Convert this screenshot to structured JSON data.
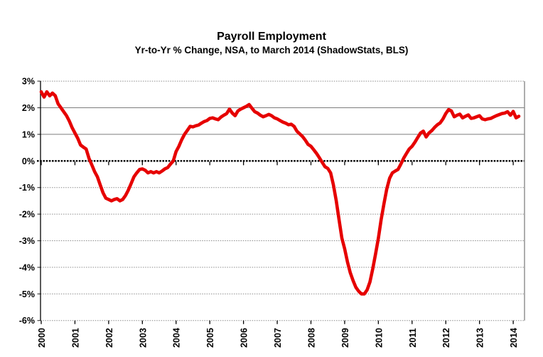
{
  "header": {
    "title": "Payroll Employment",
    "subtitle": "Yr-to-Yr % Change, NSA, to March 2014 (ShadowStats, BLS)"
  },
  "chart_data": {
    "type": "line",
    "title": "Payroll Employment",
    "subtitle": "Yr-to-Yr % Change, NSA, to March 2014 (ShadowStats, BLS)",
    "xlabel": "",
    "ylabel": "",
    "ylim": [
      -6,
      3
    ],
    "grid": true,
    "legend": "none",
    "background": "#ffffff",
    "line_color": "#e60000",
    "zero_line_color": "#000000",
    "gridline_color": "#8c8c8c",
    "x_unit": "month",
    "x_start": "2000-01",
    "x_end": "2014-03",
    "x_tick_labels": [
      "2000",
      "2001",
      "2002",
      "2003",
      "2004",
      "2005",
      "2006",
      "2007",
      "2008",
      "2009",
      "2010",
      "2011",
      "2012",
      "2013",
      "2014"
    ],
    "y_tick_values": [
      3,
      2,
      1,
      0,
      -1,
      -2,
      -3,
      -4,
      -5,
      -6
    ],
    "y_tick_labels": [
      "3%",
      "2%",
      "1%",
      "0%",
      "-1%",
      "-2%",
      "-3%",
      "-4%",
      "-5%",
      "-6%"
    ],
    "series": [
      {
        "name": "Payroll Employment Yr-to-Yr % Change (NSA)",
        "color": "#e60000",
        "monthly_values": [
          2.6,
          2.4,
          2.6,
          2.45,
          2.55,
          2.45,
          2.15,
          2.0,
          1.85,
          1.7,
          1.5,
          1.25,
          1.05,
          0.85,
          0.6,
          0.52,
          0.45,
          0.1,
          -0.15,
          -0.4,
          -0.6,
          -0.9,
          -1.2,
          -1.4,
          -1.45,
          -1.5,
          -1.45,
          -1.42,
          -1.5,
          -1.45,
          -1.3,
          -1.1,
          -0.85,
          -0.6,
          -0.45,
          -0.32,
          -0.3,
          -0.35,
          -0.45,
          -0.4,
          -0.45,
          -0.4,
          -0.45,
          -0.38,
          -0.3,
          -0.25,
          -0.12,
          0.0,
          0.35,
          0.55,
          0.8,
          1.0,
          1.15,
          1.3,
          1.28,
          1.32,
          1.35,
          1.42,
          1.48,
          1.52,
          1.6,
          1.62,
          1.58,
          1.55,
          1.65,
          1.72,
          1.78,
          1.95,
          1.8,
          1.7,
          1.88,
          1.95,
          2.0,
          2.05,
          2.12,
          1.98,
          1.85,
          1.8,
          1.72,
          1.66,
          1.7,
          1.75,
          1.7,
          1.62,
          1.58,
          1.52,
          1.46,
          1.42,
          1.36,
          1.38,
          1.3,
          1.12,
          1.02,
          0.92,
          0.78,
          0.62,
          0.55,
          0.42,
          0.28,
          0.12,
          -0.05,
          -0.22,
          -0.28,
          -0.45,
          -0.9,
          -1.5,
          -2.2,
          -2.9,
          -3.3,
          -3.8,
          -4.2,
          -4.5,
          -4.75,
          -4.9,
          -5.0,
          -5.0,
          -4.85,
          -4.55,
          -4.05,
          -3.5,
          -2.9,
          -2.2,
          -1.6,
          -1.05,
          -0.65,
          -0.45,
          -0.38,
          -0.32,
          -0.12,
          0.1,
          0.28,
          0.45,
          0.55,
          0.7,
          0.88,
          1.05,
          1.12,
          0.9,
          1.05,
          1.14,
          1.26,
          1.36,
          1.43,
          1.58,
          1.78,
          1.93,
          1.88,
          1.66,
          1.72,
          1.76,
          1.62,
          1.68,
          1.73,
          1.6,
          1.62,
          1.66,
          1.7,
          1.58,
          1.55,
          1.58,
          1.6,
          1.65,
          1.7,
          1.74,
          1.78,
          1.8,
          1.85,
          1.72,
          1.86,
          1.62,
          1.68
        ]
      }
    ]
  }
}
